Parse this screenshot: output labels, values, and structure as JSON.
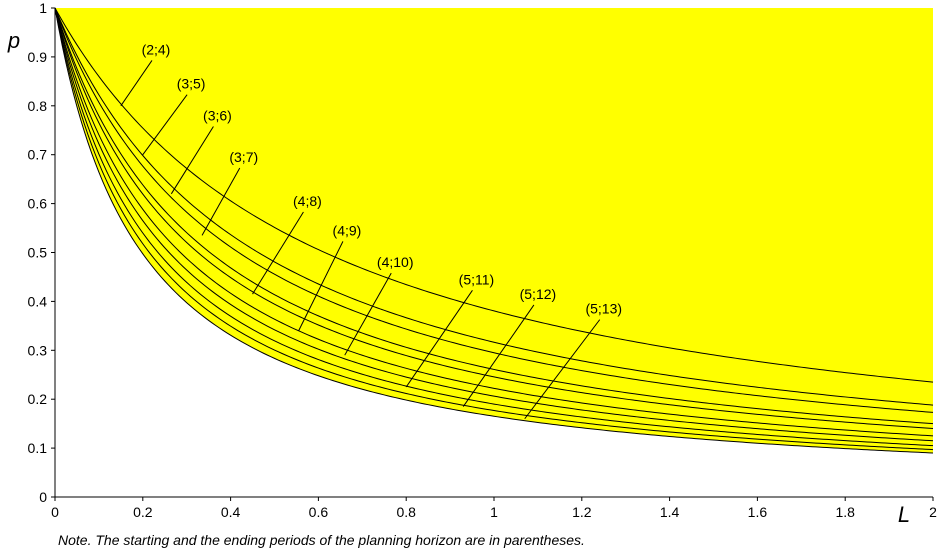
{
  "chart_data": {
    "type": "area",
    "xlabel": "L",
    "ylabel": "p",
    "xlim": [
      0,
      2
    ],
    "ylim": [
      0,
      1
    ],
    "x_ticks": [
      "0",
      "0.2",
      "0.4",
      "0.6",
      "0.8",
      "1",
      "1.2",
      "1.4",
      "1.6",
      "1.8",
      "2"
    ],
    "y_ticks": [
      "0",
      "0.1",
      "0.2",
      "0.3",
      "0.4",
      "0.5",
      "0.6",
      "0.7",
      "0.8",
      "0.9",
      "1"
    ],
    "grid": false,
    "fill_color": "#ffff00",
    "line_color": "#000000",
    "series": [
      {
        "name": "(2;4)",
        "p_at_L2": 0.235,
        "label_anchor": [
          0.15,
          0.8
        ],
        "label_pos": [
          0.23,
          0.905
        ]
      },
      {
        "name": "(3;5)",
        "p_at_L2": 0.188,
        "label_anchor": [
          0.2,
          0.7
        ],
        "label_pos": [
          0.31,
          0.835
        ]
      },
      {
        "name": "(3;6)",
        "p_at_L2": 0.173,
        "label_anchor": [
          0.265,
          0.62
        ],
        "label_pos": [
          0.37,
          0.77
        ]
      },
      {
        "name": "(3;7)",
        "p_at_L2": 0.15,
        "label_anchor": [
          0.335,
          0.535
        ],
        "label_pos": [
          0.43,
          0.685
        ]
      },
      {
        "name": "(4;8)",
        "p_at_L2": 0.14,
        "label_anchor": [
          0.45,
          0.415
        ],
        "label_pos": [
          0.575,
          0.595
        ]
      },
      {
        "name": "(4;9)",
        "p_at_L2": 0.125,
        "label_anchor": [
          0.555,
          0.34
        ],
        "label_pos": [
          0.665,
          0.535
        ]
      },
      {
        "name": "(4;10)",
        "p_at_L2": 0.115,
        "label_anchor": [
          0.66,
          0.29
        ],
        "label_pos": [
          0.775,
          0.47
        ]
      },
      {
        "name": "(5;11)",
        "p_at_L2": 0.105,
        "label_anchor": [
          0.8,
          0.225
        ],
        "label_pos": [
          0.96,
          0.435
        ]
      },
      {
        "name": "(5;12)",
        "p_at_L2": 0.097,
        "label_anchor": [
          0.93,
          0.185
        ],
        "label_pos": [
          1.1,
          0.405
        ]
      },
      {
        "name": "(5;13)",
        "p_at_L2": 0.09,
        "label_anchor": [
          1.07,
          0.16
        ],
        "label_pos": [
          1.25,
          0.375
        ]
      }
    ]
  },
  "note": "Note. The starting and the ending periods of the planning horizon are in parentheses."
}
